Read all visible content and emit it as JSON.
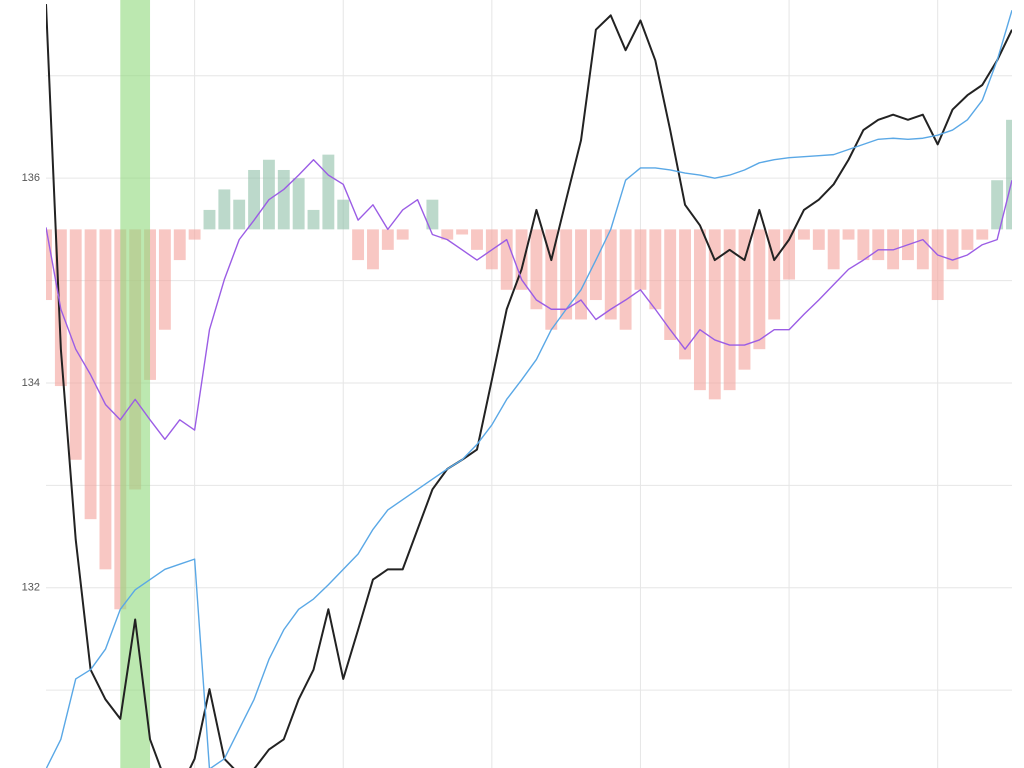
{
  "chart_data": {
    "type": "line",
    "xlim": [
      0,
      130
    ],
    "ylim": [
      130.24,
      137.74
    ],
    "yticks": [
      132,
      134,
      136
    ],
    "minor_yticks": [
      131,
      133,
      135,
      137
    ],
    "xgrid": [
      20,
      40,
      60,
      80,
      100,
      120
    ],
    "grid": true,
    "highlight_x": [
      10,
      14
    ],
    "highlight_color": "#8fd97c",
    "x": [
      0,
      2,
      4,
      6,
      8,
      10,
      12,
      14,
      16,
      18,
      20,
      22,
      24,
      26,
      28,
      30,
      32,
      34,
      36,
      38,
      40,
      42,
      44,
      46,
      48,
      50,
      52,
      54,
      56,
      58,
      60,
      62,
      64,
      66,
      68,
      70,
      72,
      74,
      76,
      78,
      80,
      82,
      84,
      86,
      88,
      90,
      92,
      94,
      96,
      98,
      100,
      102,
      104,
      106,
      108,
      110,
      112,
      114,
      116,
      118,
      120,
      122,
      124,
      126,
      128,
      130
    ],
    "histogram": {
      "baseline": 135.5,
      "up_color": "#8fbfa8",
      "down_color": "#f4a29b",
      "values": [
        134.81,
        133.97,
        133.25,
        132.67,
        132.18,
        131.79,
        132.96,
        134.03,
        134.52,
        135.2,
        135.4,
        135.69,
        135.89,
        135.79,
        136.08,
        136.18,
        136.08,
        136.0,
        135.69,
        136.23,
        135.79,
        135.2,
        135.11,
        135.3,
        135.4,
        135.5,
        135.79,
        135.4,
        135.45,
        135.3,
        135.11,
        134.91,
        134.91,
        134.72,
        134.52,
        134.62,
        134.62,
        134.81,
        134.62,
        134.52,
        134.91,
        134.72,
        134.42,
        134.23,
        133.93,
        133.84,
        133.93,
        134.13,
        134.33,
        134.62,
        135.01,
        135.4,
        135.3,
        135.11,
        135.4,
        135.2,
        135.2,
        135.11,
        135.2,
        135.11,
        134.81,
        135.11,
        135.3,
        135.4,
        135.98,
        136.57
      ]
    },
    "series": [
      {
        "color": "#222222",
        "values": [
          137.7,
          134.33,
          132.47,
          131.2,
          130.91,
          130.72,
          131.69,
          130.52,
          130.13,
          130.03,
          130.33,
          131.01,
          130.33,
          130.18,
          130.23,
          130.42,
          130.52,
          130.91,
          131.2,
          131.79,
          131.11,
          131.59,
          132.08,
          132.18,
          132.18,
          132.57,
          132.96,
          133.16,
          133.25,
          133.35,
          134.03,
          134.72,
          135.11,
          135.69,
          135.2,
          135.79,
          136.37,
          137.45,
          137.59,
          137.25,
          137.54,
          137.15,
          136.47,
          135.74,
          135.54,
          135.2,
          135.3,
          135.2,
          135.69,
          135.2,
          135.4,
          135.69,
          135.79,
          135.94,
          136.18,
          136.47,
          136.57,
          136.62,
          136.57,
          136.62,
          136.33,
          136.67,
          136.81,
          136.91,
          137.15,
          137.45
        ]
      },
      {
        "color": "#5aa8e6",
        "values": [
          130.23,
          130.52,
          131.11,
          131.2,
          131.4,
          131.79,
          131.98,
          132.08,
          132.18,
          132.23,
          132.28,
          130.23,
          130.33,
          130.62,
          130.91,
          131.3,
          131.59,
          131.79,
          131.89,
          132.03,
          132.18,
          132.33,
          132.57,
          132.76,
          132.86,
          132.96,
          133.06,
          133.16,
          133.25,
          133.4,
          133.59,
          133.84,
          134.03,
          134.23,
          134.52,
          134.72,
          134.91,
          135.2,
          135.5,
          135.98,
          136.1,
          136.1,
          136.08,
          136.05,
          136.03,
          136.0,
          136.03,
          136.08,
          136.15,
          136.18,
          136.2,
          136.21,
          136.22,
          136.23,
          136.28,
          136.33,
          136.38,
          136.39,
          136.38,
          136.39,
          136.42,
          136.47,
          136.57,
          136.76,
          137.15,
          137.64
        ]
      },
      {
        "color": "#9b5de5",
        "values": [
          135.52,
          134.72,
          134.33,
          134.08,
          133.79,
          133.64,
          133.84,
          133.64,
          133.45,
          133.64,
          133.54,
          134.52,
          135.01,
          135.4,
          135.59,
          135.79,
          135.89,
          136.03,
          136.18,
          136.03,
          135.94,
          135.59,
          135.74,
          135.5,
          135.69,
          135.79,
          135.45,
          135.4,
          135.3,
          135.2,
          135.3,
          135.4,
          135.01,
          134.81,
          134.72,
          134.72,
          134.81,
          134.62,
          134.72,
          134.81,
          134.91,
          134.72,
          134.52,
          134.33,
          134.52,
          134.42,
          134.37,
          134.37,
          134.42,
          134.52,
          134.52,
          134.67,
          134.81,
          134.96,
          135.11,
          135.2,
          135.3,
          135.3,
          135.35,
          135.4,
          135.25,
          135.2,
          135.25,
          135.35,
          135.4,
          135.98
        ]
      }
    ]
  }
}
